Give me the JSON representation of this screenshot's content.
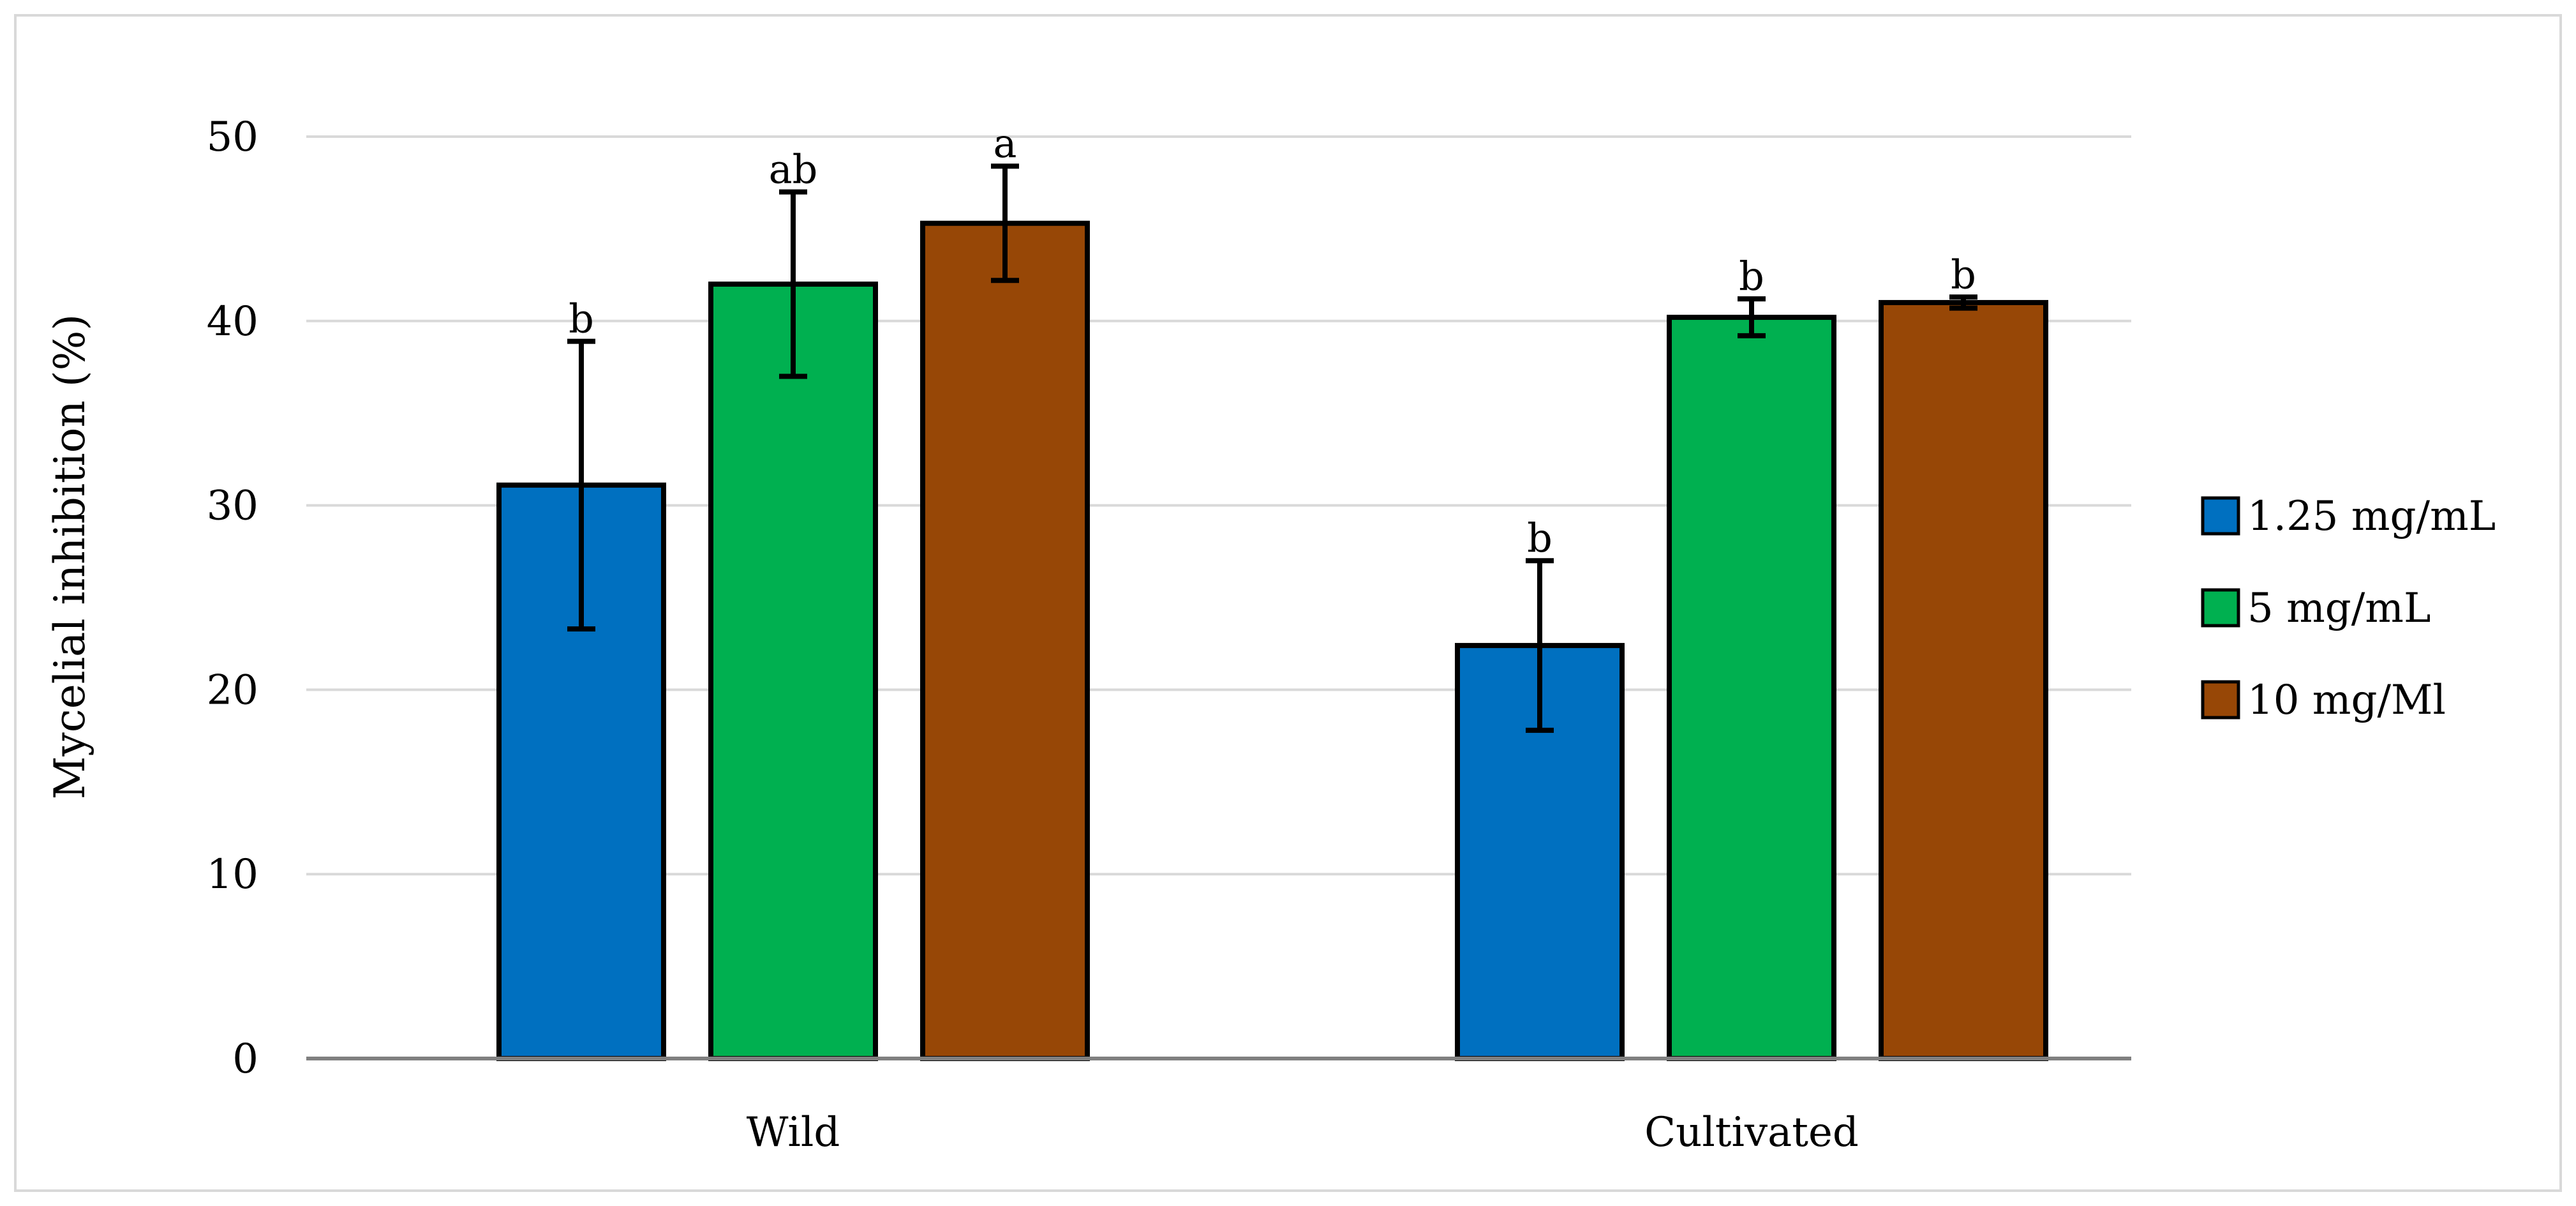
{
  "chart_data": {
    "type": "bar",
    "title": "",
    "xlabel": "",
    "ylabel": "Mycelial inhibition (%)",
    "ylim": [
      0,
      50
    ],
    "yticks": [
      0,
      10,
      20,
      30,
      40,
      50
    ],
    "grid": true,
    "legend_position": "right",
    "categories": [
      "Wild",
      "Cultivated"
    ],
    "series": [
      {
        "name": "1.25 mg/mL",
        "color": "#0070C0",
        "values": [
          31.1,
          22.4
        ],
        "errors": [
          7.8,
          4.6
        ],
        "significance": [
          "b",
          "b"
        ]
      },
      {
        "name": "5 mg/mL",
        "color": "#00B050",
        "values": [
          42.0,
          40.2
        ],
        "errors": [
          5.0,
          1.0
        ],
        "significance": [
          "ab",
          "b"
        ]
      },
      {
        "name": "10 mg/Ml",
        "color": "#974706",
        "values": [
          45.3,
          41.0
        ],
        "errors": [
          3.1,
          0.3
        ],
        "significance": [
          "a",
          "b"
        ]
      }
    ]
  }
}
